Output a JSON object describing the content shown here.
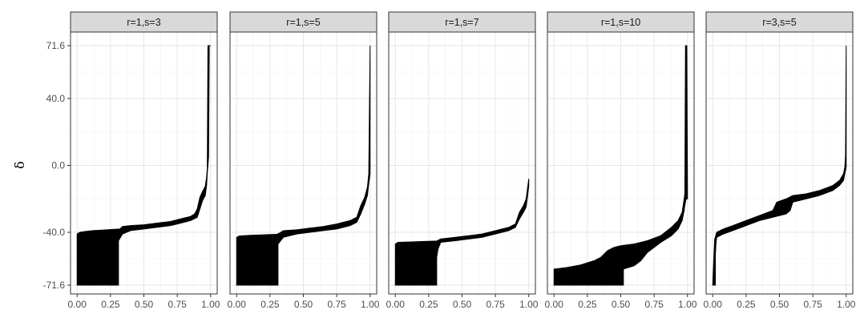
{
  "chart_data": {
    "type": "area",
    "facet_layout": "1 row x 5 columns",
    "xlabel": "",
    "ylabel": "δ",
    "xlim": [
      0,
      1
    ],
    "ylim": [
      -71.6,
      71.6
    ],
    "x_ticks": [
      0,
      0.25,
      0.5,
      0.75,
      1
    ],
    "x_tick_labels": [
      "0.00",
      "0.25",
      "0.50",
      "0.75",
      "1.00"
    ],
    "y_ticks": [
      71.6,
      40.0,
      0.0,
      -40.0,
      -71.6
    ],
    "y_tick_labels": [
      "71.6",
      "40.0",
      "0.0",
      "-40.0",
      "-71.6"
    ],
    "grid": true,
    "fill_color": "#000000",
    "panels": [
      {
        "label": "r=1,s=3",
        "upper": [
          [
            0.0,
            -41
          ],
          [
            0.02,
            -40
          ],
          [
            0.06,
            -39.5
          ],
          [
            0.12,
            -39
          ],
          [
            0.2,
            -38.6
          ],
          [
            0.28,
            -38.2
          ],
          [
            0.32,
            -38
          ],
          [
            0.34,
            -36.5
          ],
          [
            0.4,
            -36
          ],
          [
            0.5,
            -35.5
          ],
          [
            0.6,
            -34.5
          ],
          [
            0.7,
            -33.5
          ],
          [
            0.75,
            -32.5
          ],
          [
            0.8,
            -31.5
          ],
          [
            0.85,
            -30.5
          ],
          [
            0.88,
            -29
          ],
          [
            0.9,
            -26
          ],
          [
            0.92,
            -19
          ],
          [
            0.94,
            -15.5
          ],
          [
            0.96,
            -12.5
          ],
          [
            0.97,
            -7
          ],
          [
            0.975,
            -2
          ],
          [
            0.98,
            71.6
          ],
          [
            1.0,
            71.6
          ]
        ],
        "lower": [
          [
            0.0,
            -71.6
          ],
          [
            0.31,
            -71.6
          ],
          [
            0.31,
            -45
          ],
          [
            0.34,
            -41
          ],
          [
            0.4,
            -39
          ],
          [
            0.5,
            -38
          ],
          [
            0.6,
            -37
          ],
          [
            0.7,
            -36
          ],
          [
            0.75,
            -35
          ],
          [
            0.8,
            -34
          ],
          [
            0.85,
            -33
          ],
          [
            0.9,
            -31
          ],
          [
            0.92,
            -26
          ],
          [
            0.94,
            -21
          ],
          [
            0.96,
            -18
          ],
          [
            0.97,
            -12
          ],
          [
            0.975,
            -5
          ],
          [
            0.98,
            0
          ],
          [
            0.985,
            5
          ],
          [
            0.99,
            71.6
          ],
          [
            1.0,
            71.6
          ]
        ]
      },
      {
        "label": "r=1,s=5",
        "upper": [
          [
            0.0,
            -43
          ],
          [
            0.02,
            -42.2
          ],
          [
            0.1,
            -41.8
          ],
          [
            0.2,
            -41.5
          ],
          [
            0.3,
            -41.2
          ],
          [
            0.32,
            -40.5
          ],
          [
            0.35,
            -39
          ],
          [
            0.45,
            -38.5
          ],
          [
            0.55,
            -37.5
          ],
          [
            0.65,
            -36.5
          ],
          [
            0.75,
            -35
          ],
          [
            0.85,
            -33
          ],
          [
            0.9,
            -31
          ],
          [
            0.93,
            -24
          ],
          [
            0.96,
            -19
          ],
          [
            0.98,
            -13
          ],
          [
            0.99,
            -5
          ],
          [
            1.0,
            71.6
          ]
        ],
        "lower": [
          [
            0.0,
            -71.6
          ],
          [
            0.31,
            -71.6
          ],
          [
            0.31,
            -47
          ],
          [
            0.35,
            -43
          ],
          [
            0.45,
            -41
          ],
          [
            0.55,
            -40
          ],
          [
            0.65,
            -39
          ],
          [
            0.75,
            -38
          ],
          [
            0.85,
            -36
          ],
          [
            0.9,
            -34
          ],
          [
            0.93,
            -29
          ],
          [
            0.96,
            -23
          ],
          [
            0.98,
            -18
          ],
          [
            0.99,
            -11
          ],
          [
            1.0,
            -5
          ]
        ]
      },
      {
        "label": "r=1,s=7",
        "upper": [
          [
            0.0,
            -47
          ],
          [
            0.02,
            -46
          ],
          [
            0.1,
            -45.8
          ],
          [
            0.2,
            -45.5
          ],
          [
            0.31,
            -45.2
          ],
          [
            0.34,
            -44
          ],
          [
            0.45,
            -43
          ],
          [
            0.55,
            -42
          ],
          [
            0.65,
            -41
          ],
          [
            0.75,
            -39
          ],
          [
            0.85,
            -37
          ],
          [
            0.9,
            -35
          ],
          [
            0.93,
            -28
          ],
          [
            0.96,
            -24
          ],
          [
            0.98,
            -20
          ],
          [
            0.99,
            -14
          ],
          [
            1.0,
            -8
          ]
        ],
        "lower": [
          [
            0.0,
            -71.6
          ],
          [
            0.31,
            -71.6
          ],
          [
            0.31,
            -55
          ],
          [
            0.32,
            -50
          ],
          [
            0.34,
            -46
          ],
          [
            0.45,
            -45
          ],
          [
            0.55,
            -44
          ],
          [
            0.65,
            -43
          ],
          [
            0.75,
            -41
          ],
          [
            0.85,
            -39
          ],
          [
            0.9,
            -37
          ],
          [
            0.93,
            -32
          ],
          [
            0.96,
            -28
          ],
          [
            0.98,
            -25
          ],
          [
            0.99,
            -19
          ],
          [
            1.0,
            -12
          ]
        ]
      },
      {
        "label": "r=1,s=10",
        "upper": [
          [
            0.0,
            -62
          ],
          [
            0.1,
            -61
          ],
          [
            0.2,
            -59.5
          ],
          [
            0.3,
            -57
          ],
          [
            0.35,
            -55
          ],
          [
            0.4,
            -51
          ],
          [
            0.45,
            -49
          ],
          [
            0.5,
            -48
          ],
          [
            0.6,
            -47
          ],
          [
            0.7,
            -45
          ],
          [
            0.8,
            -42
          ],
          [
            0.88,
            -37
          ],
          [
            0.93,
            -33
          ],
          [
            0.96,
            -28
          ],
          [
            0.975,
            -20
          ],
          [
            0.98,
            -17
          ],
          [
            0.985,
            71.6
          ],
          [
            0.995,
            71.6
          ],
          [
            1.0,
            -15
          ]
        ],
        "lower": [
          [
            0.0,
            -71.6
          ],
          [
            0.52,
            -71.6
          ],
          [
            0.52,
            -62
          ],
          [
            0.6,
            -60
          ],
          [
            0.65,
            -57
          ],
          [
            0.7,
            -52
          ],
          [
            0.75,
            -49
          ],
          [
            0.8,
            -46
          ],
          [
            0.88,
            -42
          ],
          [
            0.93,
            -38
          ],
          [
            0.96,
            -33
          ],
          [
            0.975,
            -27
          ],
          [
            0.98,
            -24
          ],
          [
            0.985,
            -22
          ],
          [
            0.99,
            -20
          ],
          [
            1.0,
            -20
          ]
        ]
      },
      {
        "label": "r=3,s=5",
        "upper": [
          [
            0.0,
            -71.6
          ],
          [
            0.01,
            -52
          ],
          [
            0.015,
            -44
          ],
          [
            0.03,
            -40
          ],
          [
            0.08,
            -38
          ],
          [
            0.15,
            -36
          ],
          [
            0.25,
            -33
          ],
          [
            0.35,
            -30
          ],
          [
            0.45,
            -27
          ],
          [
            0.48,
            -22
          ],
          [
            0.55,
            -20
          ],
          [
            0.6,
            -18
          ],
          [
            0.7,
            -17
          ],
          [
            0.8,
            -15
          ],
          [
            0.9,
            -12
          ],
          [
            0.95,
            -9
          ],
          [
            0.98,
            -5
          ],
          [
            0.99,
            -1
          ],
          [
            0.995,
            6
          ],
          [
            1.0,
            71.6
          ]
        ],
        "lower": [
          [
            0.0,
            -71.6
          ],
          [
            0.02,
            -71.6
          ],
          [
            0.02,
            -53
          ],
          [
            0.025,
            -46
          ],
          [
            0.03,
            -43
          ],
          [
            0.08,
            -41
          ],
          [
            0.15,
            -39
          ],
          [
            0.25,
            -36
          ],
          [
            0.35,
            -33
          ],
          [
            0.45,
            -31
          ],
          [
            0.5,
            -30
          ],
          [
            0.55,
            -29
          ],
          [
            0.58,
            -27
          ],
          [
            0.6,
            -22
          ],
          [
            0.7,
            -20
          ],
          [
            0.8,
            -18
          ],
          [
            0.9,
            -15
          ],
          [
            0.95,
            -12
          ],
          [
            0.98,
            -9
          ],
          [
            0.99,
            -5
          ],
          [
            1.0,
            -1
          ]
        ]
      }
    ]
  }
}
